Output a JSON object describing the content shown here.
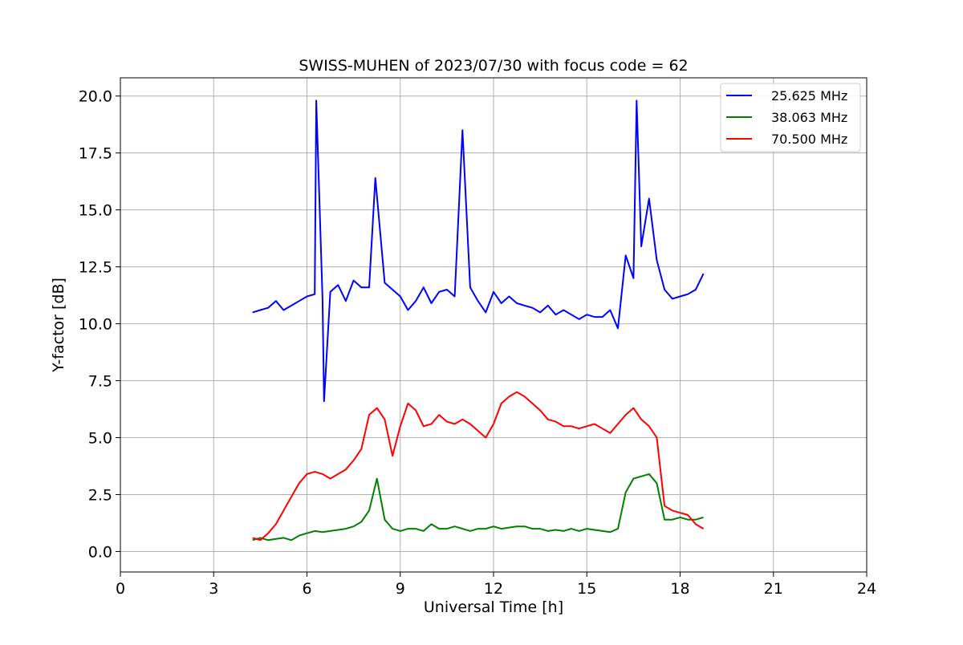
{
  "chart_data": {
    "type": "line",
    "title": "SWISS-MUHEN of 2023/07/30 with focus code = 62",
    "xlabel": "Universal Time [h]",
    "ylabel": "Y-factor [dB]",
    "xlim": [
      0,
      24
    ],
    "ylim": [
      -0.9,
      20.8
    ],
    "xticks": [
      0,
      3,
      6,
      9,
      12,
      15,
      18,
      21,
      24
    ],
    "xtick_labels": [
      "0",
      "3",
      "6",
      "9",
      "12",
      "15",
      "18",
      "21",
      "24"
    ],
    "yticks": [
      0.0,
      2.5,
      5.0,
      7.5,
      10.0,
      12.5,
      15.0,
      17.5,
      20.0
    ],
    "ytick_labels": [
      "0.0",
      "2.5",
      "5.0",
      "7.5",
      "10.0",
      "12.5",
      "15.0",
      "17.5",
      "20.0"
    ],
    "grid": true,
    "legend_position": "top-right",
    "series": [
      {
        "name": "25.625 MHz",
        "color": "#0000ff",
        "x": [
          4.25,
          4.5,
          4.75,
          5.0,
          5.25,
          5.5,
          5.75,
          6.0,
          6.25,
          6.3,
          6.5,
          6.55,
          6.75,
          7.0,
          7.25,
          7.5,
          7.75,
          8.0,
          8.2,
          8.5,
          8.75,
          9.0,
          9.25,
          9.5,
          9.75,
          10.0,
          10.25,
          10.5,
          10.75,
          11.0,
          11.25,
          11.5,
          11.75,
          12.0,
          12.25,
          12.5,
          12.75,
          13.0,
          13.25,
          13.5,
          13.75,
          14.0,
          14.25,
          14.5,
          14.75,
          15.0,
          15.25,
          15.5,
          15.75,
          16.0,
          16.25,
          16.5,
          16.6,
          16.75,
          17.0,
          17.25,
          17.5,
          17.75,
          18.0,
          18.25,
          18.5,
          18.75
        ],
        "y": [
          10.5,
          10.6,
          10.7,
          11.0,
          10.6,
          10.8,
          11.0,
          11.2,
          11.3,
          19.8,
          11.1,
          6.6,
          11.4,
          11.7,
          11.0,
          11.9,
          11.6,
          11.6,
          16.4,
          11.8,
          11.5,
          11.2,
          10.6,
          11.0,
          11.6,
          10.9,
          11.4,
          11.5,
          11.2,
          18.5,
          11.6,
          11.0,
          10.5,
          11.4,
          10.9,
          11.2,
          10.9,
          10.8,
          10.7,
          10.5,
          10.8,
          10.4,
          10.6,
          10.4,
          10.2,
          10.4,
          10.3,
          10.3,
          10.6,
          9.8,
          13.0,
          12.0,
          19.8,
          13.4,
          15.5,
          12.8,
          11.5,
          11.1,
          11.2,
          11.3,
          11.5,
          12.2
        ]
      },
      {
        "name": "38.063 MHz",
        "color": "#008000",
        "x": [
          4.25,
          4.5,
          4.75,
          5.0,
          5.25,
          5.5,
          5.75,
          6.0,
          6.25,
          6.5,
          6.75,
          7.0,
          7.25,
          7.5,
          7.75,
          8.0,
          8.25,
          8.5,
          8.75,
          9.0,
          9.25,
          9.5,
          9.75,
          10.0,
          10.25,
          10.5,
          10.75,
          11.0,
          11.25,
          11.5,
          11.75,
          12.0,
          12.25,
          12.5,
          12.75,
          13.0,
          13.25,
          13.5,
          13.75,
          14.0,
          14.25,
          14.5,
          14.75,
          15.0,
          15.25,
          15.5,
          15.75,
          16.0,
          16.25,
          16.5,
          16.75,
          17.0,
          17.25,
          17.5,
          17.75,
          18.0,
          18.25,
          18.5,
          18.75
        ],
        "y": [
          0.5,
          0.6,
          0.5,
          0.55,
          0.6,
          0.5,
          0.7,
          0.8,
          0.9,
          0.85,
          0.9,
          0.95,
          1.0,
          1.1,
          1.3,
          1.8,
          3.2,
          1.4,
          1.0,
          0.9,
          1.0,
          1.0,
          0.9,
          1.2,
          1.0,
          1.0,
          1.1,
          1.0,
          0.9,
          1.0,
          1.0,
          1.1,
          1.0,
          1.05,
          1.1,
          1.1,
          1.0,
          1.0,
          0.9,
          0.95,
          0.9,
          1.0,
          0.9,
          1.0,
          0.95,
          0.9,
          0.85,
          1.0,
          2.6,
          3.2,
          3.3,
          3.4,
          3.0,
          1.4,
          1.4,
          1.5,
          1.4,
          1.4,
          1.5
        ]
      },
      {
        "name": "70.500 MHz",
        "color": "#ff0000",
        "x": [
          4.25,
          4.5,
          4.75,
          5.0,
          5.25,
          5.5,
          5.75,
          6.0,
          6.25,
          6.5,
          6.75,
          7.0,
          7.25,
          7.5,
          7.75,
          8.0,
          8.25,
          8.5,
          8.75,
          9.0,
          9.25,
          9.5,
          9.75,
          10.0,
          10.25,
          10.5,
          10.75,
          11.0,
          11.25,
          11.5,
          11.75,
          12.0,
          12.25,
          12.5,
          12.75,
          13.0,
          13.25,
          13.5,
          13.75,
          14.0,
          14.25,
          14.5,
          14.75,
          15.0,
          15.25,
          15.5,
          15.75,
          16.0,
          16.25,
          16.5,
          16.75,
          17.0,
          17.25,
          17.5,
          17.75,
          18.0,
          18.25,
          18.5,
          18.75
        ],
        "y": [
          0.6,
          0.5,
          0.8,
          1.2,
          1.8,
          2.4,
          3.0,
          3.4,
          3.5,
          3.4,
          3.2,
          3.4,
          3.6,
          4.0,
          4.5,
          6.0,
          6.3,
          5.8,
          4.2,
          5.5,
          6.5,
          6.2,
          5.5,
          5.6,
          6.0,
          5.7,
          5.6,
          5.8,
          5.6,
          5.3,
          5.0,
          5.6,
          6.5,
          6.8,
          7.0,
          6.8,
          6.5,
          6.2,
          5.8,
          5.7,
          5.5,
          5.5,
          5.4,
          5.5,
          5.6,
          5.4,
          5.2,
          5.6,
          6.0,
          6.3,
          5.8,
          5.5,
          5.0,
          2.0,
          1.8,
          1.7,
          1.6,
          1.2,
          1.0
        ]
      }
    ]
  }
}
